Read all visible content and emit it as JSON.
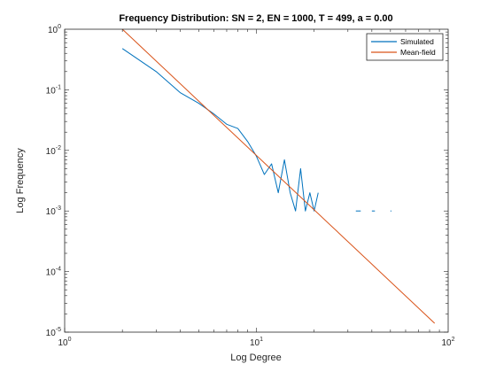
{
  "chart_data": {
    "type": "line",
    "title": "Frequency Distribution: SN = 2, EN = 1000, T = 499, a = 0.00",
    "xlabel": "Log Degree",
    "ylabel": "Log Frequency",
    "x_scale": "log",
    "y_scale": "log",
    "xlim": [
      1,
      100
    ],
    "ylim": [
      1e-05,
      1
    ],
    "grid": false,
    "legend_position": "top-right",
    "x_ticks": [
      {
        "base": "10",
        "exp": "0",
        "value": 1
      },
      {
        "base": "10",
        "exp": "1",
        "value": 10
      },
      {
        "base": "10",
        "exp": "2",
        "value": 100
      }
    ],
    "y_ticks": [
      {
        "base": "10",
        "exp": "-5",
        "value": 1e-05
      },
      {
        "base": "10",
        "exp": "-4",
        "value": 0.0001
      },
      {
        "base": "10",
        "exp": "-3",
        "value": 0.001
      },
      {
        "base": "10",
        "exp": "-2",
        "value": 0.01
      },
      {
        "base": "10",
        "exp": "-1",
        "value": 0.1
      },
      {
        "base": "10",
        "exp": "0",
        "value": 1
      }
    ],
    "series": [
      {
        "name": "Simulated",
        "color": "#0072BD",
        "style": "line",
        "points": [
          [
            2,
            0.48
          ],
          [
            3,
            0.2
          ],
          [
            4,
            0.09
          ],
          [
            5,
            0.06
          ],
          [
            6,
            0.04
          ],
          [
            7,
            0.027
          ],
          [
            8,
            0.023
          ],
          [
            9,
            0.014
          ],
          [
            10,
            0.008
          ],
          [
            11,
            0.004
          ],
          [
            12,
            0.006
          ],
          [
            13,
            0.002
          ],
          [
            14,
            0.007
          ],
          [
            15,
            0.002
          ],
          [
            16,
            0.001
          ],
          [
            17,
            0.005
          ],
          [
            18,
            0.001
          ],
          [
            19,
            0.002
          ],
          [
            20,
            0.001
          ],
          [
            21,
            0.002
          ]
        ]
      },
      {
        "name": "Simulated (isolated)",
        "color": "#0072BD",
        "style": "dash",
        "segments": [
          [
            [
              33,
              0.001
            ],
            [
              35,
              0.001
            ]
          ],
          [
            [
              40,
              0.001
            ],
            [
              41.5,
              0.001
            ]
          ],
          [
            [
              50,
              0.001
            ],
            [
              50.6,
              0.001
            ]
          ]
        ]
      },
      {
        "name": "Mean-field",
        "color": "#D95319",
        "style": "line",
        "points": [
          [
            2,
            1.0
          ],
          [
            85,
            1.4e-05
          ]
        ]
      }
    ],
    "legend": [
      "Simulated",
      "Mean-field"
    ]
  }
}
